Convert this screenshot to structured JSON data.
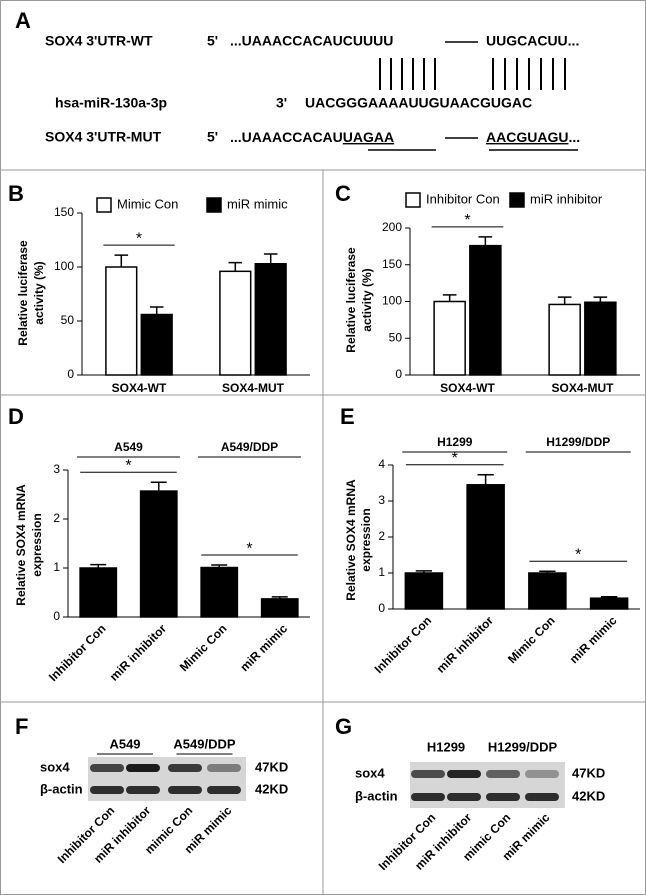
{
  "panel_a": {
    "letter": "A",
    "wt": {
      "label": "SOX4 3'UTR-WT",
      "prefix": "5'",
      "seq_left": "...UAAACCACAUCUUUU",
      "seq_right": "UUGCACUU..."
    },
    "mir": {
      "label": "hsa-miR-130a-3p",
      "prefix": "3'",
      "seq": "UACGGGAAAAUUGUAACGUGAC"
    },
    "mut": {
      "label": "SOX4 3'UTR-MUT",
      "prefix": "5'",
      "seq_left": [
        "...UAAACCACAU",
        "UAGAA"
      ],
      "seq_right": [
        "AACGUAGU",
        "..."
      ]
    }
  },
  "chart_data": [
    {
      "type": "bar",
      "panel": "B",
      "ylabel": [
        "Relative luciferase",
        "activity (%)"
      ],
      "categories": [
        "SOX4-WT",
        "SOX4-MUT"
      ],
      "series": [
        {
          "name": "Mimic Con",
          "color": "#ffffff",
          "values": [
            100,
            96
          ],
          "errors": [
            11,
            8
          ]
        },
        {
          "name": "miR mimic",
          "color": "#000000",
          "values": [
            56,
            103
          ],
          "errors": [
            7,
            9
          ]
        }
      ],
      "ylim": [
        0,
        150
      ],
      "yticks": [
        0,
        50,
        100,
        150
      ],
      "annotations": [
        "*"
      ]
    },
    {
      "type": "bar",
      "panel": "C",
      "ylabel": [
        "Relative luciferase",
        "activity (%)"
      ],
      "categories": [
        "SOX4-WT",
        "SOX4-MUT"
      ],
      "series": [
        {
          "name": "Inhibitor Con",
          "color": "#ffffff",
          "values": [
            100,
            96
          ],
          "errors": [
            9,
            10
          ]
        },
        {
          "name": "miR inhibitor",
          "color": "#000000",
          "values": [
            176,
            99
          ],
          "errors": [
            12,
            7
          ]
        }
      ],
      "ylim": [
        0,
        200
      ],
      "yticks": [
        0,
        50,
        100,
        150,
        200
      ],
      "annotations": [
        "*"
      ]
    },
    {
      "type": "bar",
      "panel": "D",
      "ylabel": [
        "Relative SOX4 mRNA",
        "expression"
      ],
      "groups": [
        "A549",
        "A549/DDP"
      ],
      "categories": [
        "Inhibitor Con",
        "miR inhibitor",
        "Mimic Con",
        "miR mimic"
      ],
      "values": [
        1,
        2.57,
        1.01,
        0.37
      ],
      "errors": [
        0.07,
        0.18,
        0.05,
        0.04
      ],
      "color": "#000000",
      "ylim": [
        0,
        3
      ],
      "yticks": [
        0,
        1,
        2,
        3
      ],
      "annotations": [
        "*",
        "*"
      ]
    },
    {
      "type": "bar",
      "panel": "E",
      "ylabel": [
        "Relative SOX4 mRNA",
        "expression"
      ],
      "groups": [
        "H1299",
        "H1299/DDP"
      ],
      "categories": [
        "Inhibitor Con",
        "miR inhibitor",
        "Mimic Con",
        "miR mimic"
      ],
      "values": [
        1,
        3.45,
        1,
        0.3
      ],
      "errors": [
        0.06,
        0.28,
        0.05,
        0.04
      ],
      "color": "#000000",
      "ylim": [
        0,
        4
      ],
      "yticks": [
        0,
        1,
        2,
        3,
        4
      ],
      "annotations": [
        "*",
        "*"
      ]
    }
  ],
  "panel_f": {
    "letter": "F",
    "groups": [
      "A549",
      "A549/DDP"
    ],
    "rows": [
      {
        "label": "sox4",
        "size": "47KD"
      },
      {
        "label": "β-actin",
        "size": "42KD"
      }
    ],
    "lanes": [
      "Inhibitor Con",
      "miR inhibitor",
      "mimic Con",
      "miR mimic"
    ]
  },
  "panel_g": {
    "letter": "G",
    "groups": [
      "H1299",
      "H1299/DDP"
    ],
    "rows": [
      {
        "label": "sox4",
        "size": "47KD"
      },
      {
        "label": "β-actin",
        "size": "42KD"
      }
    ],
    "lanes": [
      "Inhibitor Con",
      "miR inhibitor",
      "mimic Con",
      "miR mimic"
    ]
  }
}
